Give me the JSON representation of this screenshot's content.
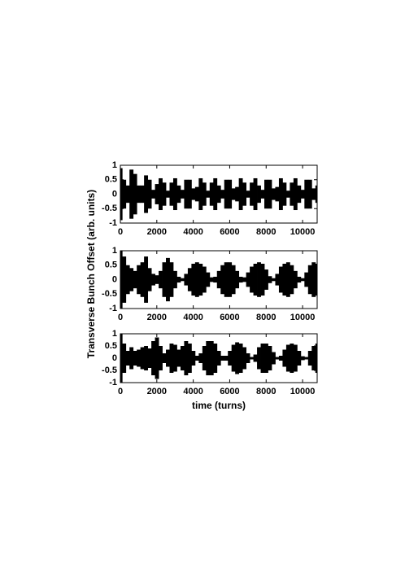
{
  "chart_data": [
    {
      "type": "envelope",
      "color": "#000000",
      "xlim": [
        0,
        10800
      ],
      "ylim": [
        -1,
        1
      ],
      "xticks": [
        0,
        2000,
        4000,
        6000,
        8000,
        10000
      ],
      "yticks": [
        -1,
        -0.5,
        0,
        0.5,
        1
      ],
      "x": [
        0,
        200,
        400,
        600,
        800,
        1000,
        1200,
        1400,
        1600,
        1800,
        2000,
        2200,
        2400,
        2600,
        2800,
        3000,
        3200,
        3400,
        3600,
        3800,
        4000,
        4200,
        4400,
        4600,
        4800,
        5000,
        5200,
        5400,
        5600,
        5800,
        6000,
        6200,
        6400,
        6600,
        6800,
        7000,
        7200,
        7400,
        7600,
        7800,
        8000,
        8200,
        8400,
        8600,
        8800,
        9000,
        9200,
        9400,
        9600,
        9800,
        10000,
        10200,
        10400,
        10600,
        10800
      ],
      "values": [
        0.9,
        0.5,
        0.3,
        0.85,
        0.7,
        0.3,
        0.3,
        0.65,
        0.5,
        0.15,
        0.35,
        0.55,
        0.4,
        0.12,
        0.4,
        0.55,
        0.3,
        0.15,
        0.5,
        0.5,
        0.2,
        0.25,
        0.55,
        0.4,
        0.12,
        0.4,
        0.55,
        0.3,
        0.15,
        0.5,
        0.5,
        0.2,
        0.25,
        0.55,
        0.4,
        0.12,
        0.4,
        0.55,
        0.3,
        0.15,
        0.5,
        0.5,
        0.2,
        0.25,
        0.55,
        0.4,
        0.12,
        0.4,
        0.55,
        0.3,
        0.15,
        0.5,
        0.5,
        0.2,
        0.3
      ]
    },
    {
      "type": "envelope",
      "color": "#000000",
      "xlim": [
        0,
        10800
      ],
      "ylim": [
        -1,
        1
      ],
      "xticks": [
        0,
        2000,
        4000,
        6000,
        8000,
        10000
      ],
      "yticks": [
        -1,
        -0.5,
        0,
        0.5,
        1
      ],
      "ylabel": "Transverse Bunch Offset (arb. units)",
      "x": [
        0,
        200,
        400,
        600,
        800,
        1000,
        1200,
        1400,
        1600,
        1800,
        2000,
        2200,
        2400,
        2600,
        2800,
        3000,
        3200,
        3400,
        3600,
        3800,
        4000,
        4200,
        4400,
        4600,
        4800,
        5000,
        5200,
        5400,
        5600,
        5800,
        6000,
        6200,
        6400,
        6600,
        6800,
        7000,
        7200,
        7400,
        7600,
        7800,
        8000,
        8200,
        8400,
        8600,
        8800,
        9000,
        9200,
        9400,
        9600,
        9800,
        10000,
        10200,
        10400,
        10600,
        10800
      ],
      "values": [
        1.0,
        0.8,
        0.5,
        0.4,
        0.3,
        0.5,
        0.6,
        0.8,
        0.4,
        0.2,
        0.15,
        0.3,
        0.6,
        0.75,
        0.6,
        0.3,
        0.1,
        0.05,
        0.2,
        0.4,
        0.55,
        0.6,
        0.55,
        0.45,
        0.25,
        0.08,
        0.1,
        0.3,
        0.5,
        0.6,
        0.6,
        0.5,
        0.3,
        0.1,
        0.08,
        0.25,
        0.45,
        0.55,
        0.6,
        0.55,
        0.35,
        0.12,
        0.05,
        0.2,
        0.45,
        0.55,
        0.6,
        0.5,
        0.3,
        0.1,
        0.05,
        0.25,
        0.5,
        0.6,
        0.55
      ]
    },
    {
      "type": "envelope",
      "color": "#000000",
      "xlim": [
        0,
        10800
      ],
      "ylim": [
        -1,
        1
      ],
      "xticks": [
        0,
        2000,
        4000,
        6000,
        8000,
        10000
      ],
      "yticks": [
        -1,
        -0.5,
        0,
        0.5,
        1
      ],
      "xlabel": "time (turns)",
      "x": [
        0,
        200,
        400,
        600,
        800,
        1000,
        1200,
        1400,
        1600,
        1800,
        2000,
        2200,
        2400,
        2600,
        2800,
        3000,
        3200,
        3400,
        3600,
        3800,
        4000,
        4200,
        4400,
        4600,
        4800,
        5000,
        5200,
        5400,
        5600,
        5800,
        6000,
        6200,
        6400,
        6600,
        6800,
        7000,
        7200,
        7400,
        7600,
        7800,
        8000,
        8200,
        8400,
        8600,
        8800,
        9000,
        9200,
        9400,
        9600,
        9800,
        10000,
        10200,
        10400,
        10600,
        10800
      ],
      "values": [
        1.0,
        0.6,
        0.3,
        0.45,
        0.3,
        0.35,
        0.45,
        0.5,
        0.4,
        0.7,
        0.85,
        0.5,
        0.2,
        0.35,
        0.6,
        0.55,
        0.35,
        0.5,
        0.7,
        0.6,
        0.3,
        0.1,
        0.2,
        0.5,
        0.7,
        0.7,
        0.6,
        0.3,
        0.1,
        0.1,
        0.3,
        0.55,
        0.65,
        0.6,
        0.45,
        0.2,
        0.05,
        0.15,
        0.45,
        0.6,
        0.6,
        0.5,
        0.25,
        0.05,
        0.1,
        0.35,
        0.55,
        0.6,
        0.55,
        0.3,
        0.08,
        0.05,
        0.3,
        0.5,
        0.6
      ]
    }
  ]
}
